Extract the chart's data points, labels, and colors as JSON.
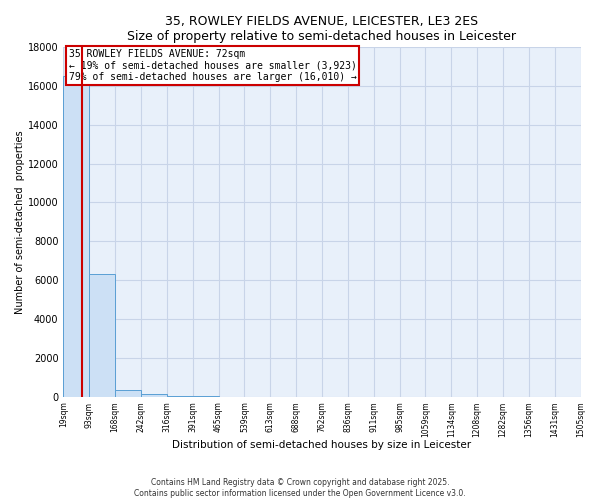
{
  "title": "35, ROWLEY FIELDS AVENUE, LEICESTER, LE3 2ES",
  "subtitle": "Size of property relative to semi-detached houses in Leicester",
  "xlabel": "Distribution of semi-detached houses by size in Leicester",
  "ylabel": "Number of semi-detached  properties",
  "bar_color": "#cce0f5",
  "bar_edge_color": "#5a9fd4",
  "grid_color": "#c8d4e8",
  "background_color": "#e8f0fa",
  "property_size": 72,
  "property_label": "35 ROWLEY FIELDS AVENUE: 72sqm",
  "pct_smaller": 19,
  "pct_larger": 79,
  "n_smaller": 3923,
  "n_larger": 16010,
  "red_line_color": "#cc0000",
  "annotation_box_edge": "#cc0000",
  "ylim": [
    0,
    18000
  ],
  "yticks": [
    0,
    2000,
    4000,
    6000,
    8000,
    10000,
    12000,
    14000,
    16000,
    18000
  ],
  "bin_edges": [
    19,
    93,
    168,
    242,
    316,
    391,
    465,
    539,
    613,
    688,
    762,
    836,
    911,
    985,
    1059,
    1134,
    1208,
    1282,
    1356,
    1431,
    1505
  ],
  "bin_labels": [
    "19sqm",
    "93sqm",
    "168sqm",
    "242sqm",
    "316sqm",
    "391sqm",
    "465sqm",
    "539sqm",
    "613sqm",
    "688sqm",
    "762sqm",
    "836sqm",
    "911sqm",
    "985sqm",
    "1059sqm",
    "1134sqm",
    "1208sqm",
    "1282sqm",
    "1356sqm",
    "1431sqm",
    "1505sqm"
  ],
  "bar_heights": [
    16500,
    6300,
    350,
    120,
    40,
    15,
    8,
    5,
    3,
    2,
    2,
    1,
    1,
    1,
    1,
    0,
    0,
    0,
    0,
    0
  ],
  "footer_line1": "Contains HM Land Registry data © Crown copyright and database right 2025.",
  "footer_line2": "Contains public sector information licensed under the Open Government Licence v3.0."
}
